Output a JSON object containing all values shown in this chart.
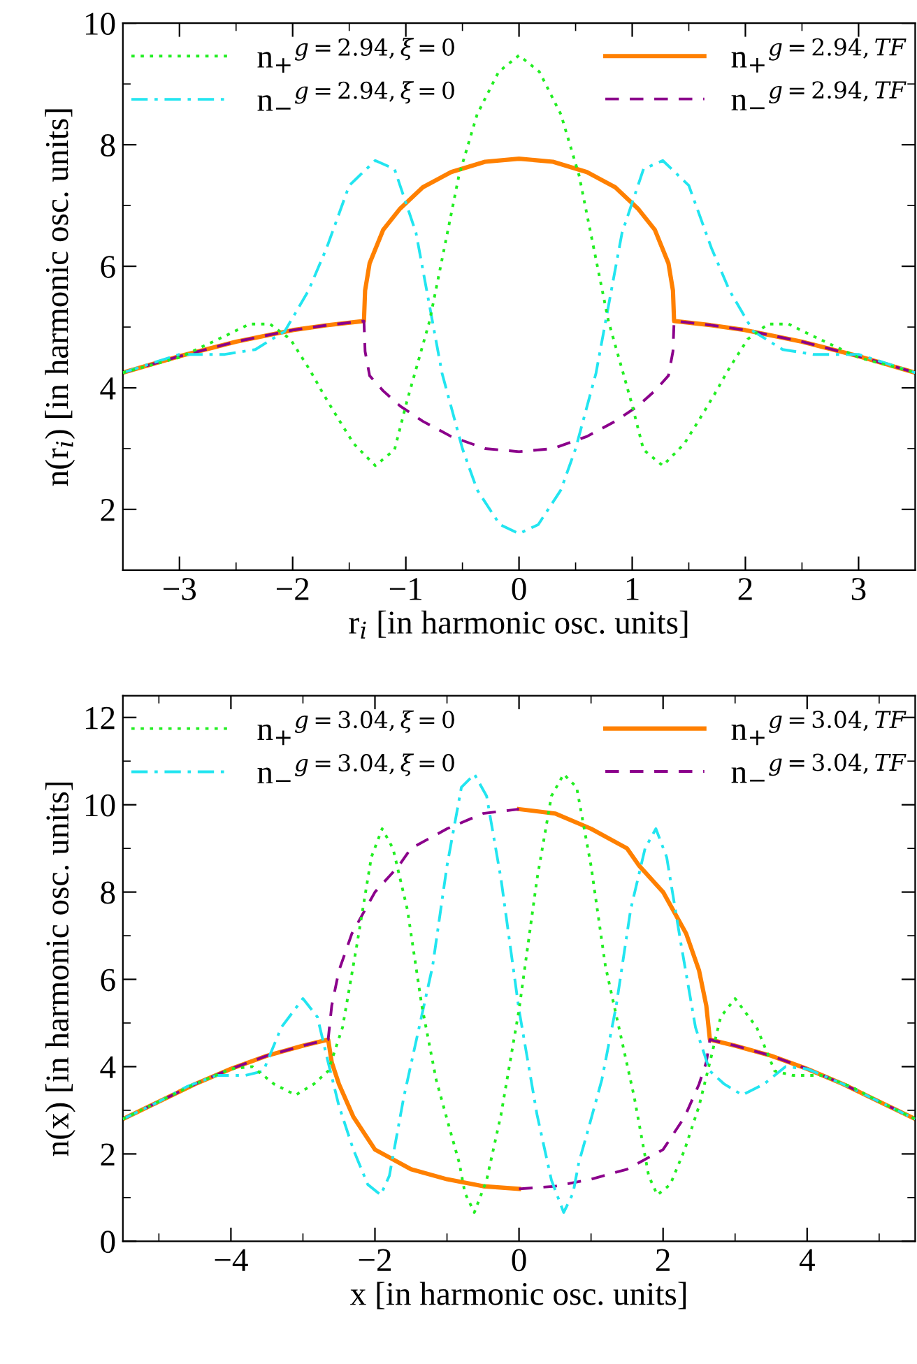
{
  "chart_data": [
    {
      "type": "line",
      "xlabel": "r$_{i}$ [in harmonic osc. units]",
      "ylabel": "n(r$_{i}$) [in harmonic osc. units]",
      "xlim": [
        -3.5,
        3.5
      ],
      "ylim": [
        1,
        10
      ],
      "xticks": [
        {
          "value": -3,
          "label": "−3"
        },
        {
          "value": -2.5,
          "label": null
        },
        {
          "value": -2,
          "label": "−2"
        },
        {
          "value": -1.5,
          "label": null
        },
        {
          "value": -1,
          "label": "−1"
        },
        {
          "value": -0.5,
          "label": null
        },
        0,
        {
          "value": 0.5,
          "label": null
        },
        1,
        {
          "value": 1.5,
          "label": null
        },
        2,
        {
          "value": 2.5,
          "label": null
        },
        3
      ],
      "yticks": [
        2,
        {
          "value": 3,
          "label": null
        },
        4,
        {
          "value": 5,
          "label": null
        },
        6,
        {
          "value": 7,
          "label": null
        },
        8,
        {
          "value": 9,
          "label": null
        },
        10
      ],
      "legend": "top",
      "series": [
        {
          "name": "n$_{+}$$^{g=2.94,ξ=0}$",
          "color": "#22ee22",
          "line_style": "dotted",
          "x": [
            -3.5,
            -3,
            -2.6,
            -2.38,
            -2.2,
            -2.02,
            -1.85,
            -1.72,
            -1.6,
            -1.46,
            -1.27,
            -1.1,
            -0.99,
            -0.79,
            -0.53,
            -0.37,
            -0.18,
            0,
            0.18,
            0.37,
            0.53,
            0.79,
            0.99,
            1.1,
            1.27,
            1.46,
            1.6,
            1.72,
            1.85,
            2.02,
            2.2,
            2.38,
            2.6,
            3,
            3.5
          ],
          "values": [
            4.25,
            4.5,
            4.85,
            5.05,
            5.05,
            4.8,
            4.3,
            3.87,
            3.5,
            3.08,
            2.72,
            2.98,
            3.78,
            5.1,
            7.5,
            8.5,
            9.2,
            9.47,
            9.2,
            8.5,
            7.5,
            5.1,
            3.78,
            2.98,
            2.72,
            3.08,
            3.5,
            3.87,
            4.3,
            4.8,
            5.05,
            5.05,
            4.85,
            4.5,
            4.25
          ]
        },
        {
          "name": "n$_{−}$$^{g=2.94,ξ=0}$",
          "color": "#22e5f0",
          "line_style": "dashdot",
          "x": [
            -3.5,
            -3,
            -2.6,
            -2.33,
            -2.07,
            -1.86,
            -1.7,
            -1.5,
            -1.27,
            -1.1,
            -0.91,
            -0.68,
            -0.5,
            -0.37,
            -0.17,
            0,
            0.17,
            0.37,
            0.5,
            0.68,
            0.91,
            1.1,
            1.27,
            1.5,
            1.7,
            1.86,
            2.07,
            2.33,
            2.6,
            3,
            3.5
          ],
          "values": [
            4.25,
            4.55,
            4.55,
            4.63,
            4.93,
            5.6,
            6.3,
            7.33,
            7.74,
            7.6,
            6.55,
            4.24,
            3.0,
            2.32,
            1.75,
            1.6,
            1.75,
            2.32,
            3.0,
            4.24,
            6.55,
            7.6,
            7.74,
            7.33,
            6.3,
            5.6,
            4.93,
            4.63,
            4.55,
            4.55,
            4.25
          ]
        },
        {
          "name": "n$_{+}$$^{g=2.94,TF}$",
          "color": "#ff8000",
          "line_style": "solid",
          "x": [
            -3.5,
            -3,
            -2.5,
            -2,
            -1.7,
            -1.37,
            -1.36,
            -1.32,
            -1.2,
            -1.05,
            -0.85,
            -0.6,
            -0.3,
            0,
            0.3,
            0.6,
            0.85,
            1.05,
            1.2,
            1.32,
            1.36,
            1.37,
            1.7,
            2,
            2.5,
            3,
            3.5
          ],
          "values": [
            4.25,
            4.52,
            4.76,
            4.95,
            5.03,
            5.1,
            5.6,
            6.05,
            6.6,
            6.95,
            7.3,
            7.55,
            7.72,
            7.77,
            7.72,
            7.55,
            7.3,
            6.95,
            6.6,
            6.05,
            5.6,
            5.1,
            5.03,
            4.95,
            4.76,
            4.52,
            4.25
          ]
        },
        {
          "name": "n$_{−}$$^{g=2.94,TF}$",
          "color": "#8b008b",
          "line_style": "dashed",
          "x": [
            -3.5,
            -3,
            -2.5,
            -2,
            -1.7,
            -1.37,
            -1.36,
            -1.32,
            -1.2,
            -1.05,
            -0.85,
            -0.6,
            -0.3,
            0,
            0.3,
            0.6,
            0.85,
            1.05,
            1.2,
            1.32,
            1.36,
            1.37,
            1.7,
            2,
            2.5,
            3,
            3.5
          ],
          "values": [
            4.25,
            4.52,
            4.76,
            4.95,
            5.03,
            5.1,
            4.6,
            4.2,
            3.95,
            3.7,
            3.45,
            3.2,
            3.0,
            2.95,
            3.0,
            3.2,
            3.45,
            3.7,
            3.95,
            4.2,
            4.6,
            5.1,
            5.03,
            4.95,
            4.76,
            4.52,
            4.25
          ]
        }
      ]
    },
    {
      "type": "line",
      "xlabel": "x [in harmonic osc. units]",
      "ylabel": "n(x) [in harmonic osc. units]",
      "xlim": [
        -5.5,
        5.5
      ],
      "ylim": [
        0,
        12.5
      ],
      "xticks": [
        {
          "value": -5,
          "label": null
        },
        {
          "value": -4,
          "label": "−4"
        },
        {
          "value": -3,
          "label": null
        },
        {
          "value": -2,
          "label": "−2"
        },
        {
          "value": -1,
          "label": null
        },
        0,
        {
          "value": 1,
          "label": null
        },
        2,
        {
          "value": 3,
          "label": null
        },
        4,
        {
          "value": 5,
          "label": null
        }
      ],
      "yticks": [
        0,
        {
          "value": 1,
          "label": null
        },
        2,
        {
          "value": 3,
          "label": null
        },
        4,
        {
          "value": 5,
          "label": null
        },
        6,
        {
          "value": 7,
          "label": null
        },
        8,
        {
          "value": 9,
          "label": null
        },
        10,
        {
          "value": 11,
          "label": null
        },
        12
      ],
      "legend": "top",
      "series": [
        {
          "name": "n$_{+}$$^{g=3.04,ξ=0}$",
          "color": "#22ee22",
          "line_style": "dotted",
          "x": [
            -5.5,
            -5,
            -4.5,
            -4,
            -3.7,
            -3.4,
            -3.1,
            -2.85,
            -2.65,
            -2.45,
            -2.25,
            -2.05,
            -1.9,
            -1.75,
            -1.55,
            -1.35,
            -1.15,
            -0.95,
            -0.83,
            -0.75,
            -0.62,
            -0.45,
            -0.25,
            0,
            0.25,
            0.45,
            0.62,
            0.8,
            1.0,
            1.2,
            1.4,
            1.6,
            1.8,
            1.92,
            2.1,
            2.3,
            2.5,
            2.65,
            2.8,
            3.0,
            3.3,
            3.55,
            3.8,
            4.2,
            4.6,
            5.0,
            5.5
          ],
          "values": [
            2.8,
            3.2,
            3.6,
            3.95,
            4.0,
            3.6,
            3.35,
            3.6,
            3.9,
            4.9,
            6.8,
            8.8,
            9.45,
            9.0,
            7.6,
            5.4,
            3.7,
            2.5,
            1.8,
            1.1,
            0.66,
            1.4,
            2.9,
            5.3,
            8.3,
            10.2,
            10.7,
            10.4,
            8.6,
            6.3,
            4.8,
            3.3,
            1.5,
            1.06,
            1.3,
            2.1,
            3.1,
            4.1,
            5.14,
            5.56,
            4.9,
            3.9,
            3.8,
            3.8,
            3.55,
            3.2,
            2.8
          ]
        },
        {
          "name": "n$_{−}$$^{g=3.04,ξ=0}$",
          "color": "#22e5f0",
          "line_style": "dashdot",
          "x": [
            -5.5,
            -5,
            -4.6,
            -4.2,
            -3.8,
            -3.55,
            -3.3,
            -3.0,
            -2.8,
            -2.65,
            -2.5,
            -2.3,
            -2.1,
            -1.92,
            -1.8,
            -1.6,
            -1.4,
            -1.2,
            -1.0,
            -0.8,
            -0.62,
            -0.45,
            -0.25,
            0,
            0.25,
            0.45,
            0.62,
            0.75,
            0.83,
            0.95,
            1.15,
            1.35,
            1.55,
            1.75,
            1.9,
            2.05,
            2.25,
            2.45,
            2.65,
            2.85,
            3.1,
            3.4,
            3.7,
            4,
            4.5,
            5,
            5.5
          ],
          "values": [
            2.8,
            3.2,
            3.55,
            3.8,
            3.8,
            3.9,
            4.9,
            5.56,
            5.14,
            4.1,
            3.1,
            2.1,
            1.3,
            1.06,
            1.5,
            3.3,
            4.8,
            6.3,
            8.6,
            10.4,
            10.7,
            10.2,
            8.3,
            5.3,
            2.9,
            1.4,
            0.66,
            1.1,
            1.8,
            2.5,
            3.7,
            5.4,
            7.6,
            9.0,
            9.45,
            8.8,
            6.8,
            4.9,
            3.9,
            3.6,
            3.35,
            3.6,
            4.0,
            3.95,
            3.6,
            3.2,
            2.8
          ]
        },
        {
          "name": "n$_{+}$$^{g=3.04,TF}$",
          "color": "#ff8000",
          "line_style": "solid",
          "x": [
            -5.5,
            -5,
            -4.5,
            -4,
            -3.5,
            -3,
            -2.65,
            -2.6,
            -2.5,
            -2.3,
            -2,
            -1.5,
            -1,
            -0.5,
            0,
            null,
            0,
            0.5,
            1,
            1.5,
            1.67,
            2,
            2.32,
            2.5,
            2.6,
            2.65,
            3,
            3.5,
            4,
            4.5,
            5,
            5.5
          ],
          "values": [
            2.8,
            3.2,
            3.6,
            3.95,
            4.25,
            4.48,
            4.62,
            4.1,
            3.6,
            2.85,
            2.1,
            1.65,
            1.42,
            1.26,
            1.2,
            null,
            9.9,
            9.8,
            9.45,
            9.0,
            8.6,
            8.0,
            7.05,
            6.2,
            5.4,
            4.62,
            4.48,
            4.25,
            3.95,
            3.6,
            3.2,
            2.8
          ]
        },
        {
          "name": "n$_{−}$$^{g=3.04,TF}$",
          "color": "#8b008b",
          "line_style": "dashed",
          "x": [
            -5.5,
            -5,
            -4.5,
            -4,
            -3.5,
            -3,
            -2.65,
            -2.6,
            -2.5,
            -2.32,
            -2,
            -1.67,
            -1.5,
            -1,
            -0.5,
            0,
            null,
            0,
            0.5,
            1,
            1.5,
            2,
            2.3,
            2.5,
            2.6,
            2.65,
            3,
            3.5,
            4,
            4.5,
            5,
            5.5
          ],
          "values": [
            2.8,
            3.2,
            3.6,
            3.95,
            4.25,
            4.48,
            4.62,
            5.4,
            6.2,
            7.05,
            8.0,
            8.6,
            9.0,
            9.45,
            9.8,
            9.9,
            null,
            1.2,
            1.26,
            1.42,
            1.65,
            2.1,
            2.85,
            3.6,
            4.1,
            4.62,
            4.48,
            4.25,
            3.95,
            3.6,
            3.2,
            2.8
          ]
        }
      ]
    }
  ]
}
